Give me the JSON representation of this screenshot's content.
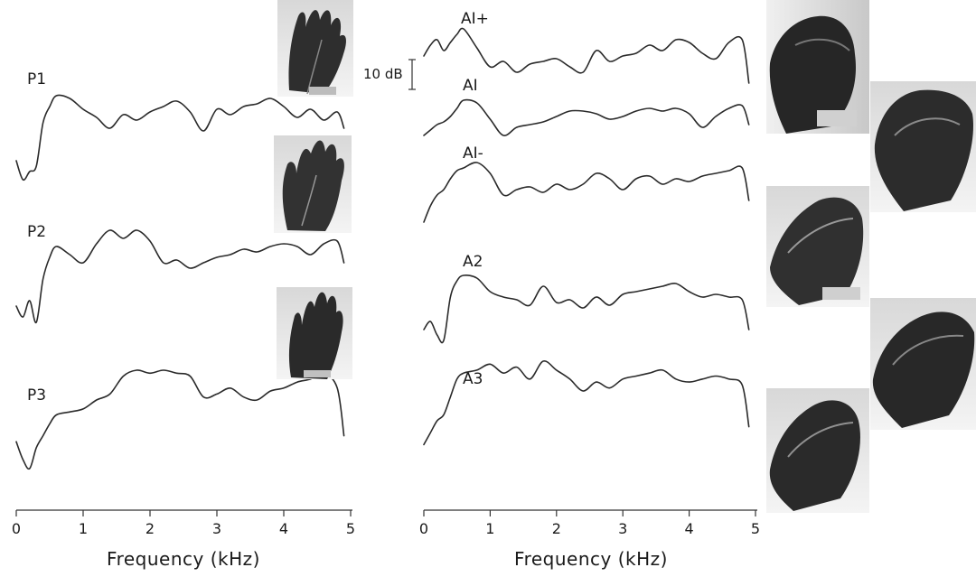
{
  "chart_data": {
    "type": "line",
    "xlabel": "Frequency (kHz)",
    "xlim": [
      0,
      5
    ],
    "x_ticks": [
      "0",
      "1",
      "2",
      "3",
      "4",
      "5"
    ],
    "scale_bar": "10 dB",
    "series": [
      {
        "name": "P1",
        "x": [
          0,
          0.1,
          0.2,
          0.3,
          0.4,
          0.5,
          0.6,
          0.8,
          1.0,
          1.2,
          1.4,
          1.6,
          1.8,
          2.0,
          2.2,
          2.4,
          2.6,
          2.8,
          3.0,
          3.2,
          3.4,
          3.6,
          3.8,
          4.0,
          4.2,
          4.4,
          4.6,
          4.8,
          4.9
        ],
        "y": [
          -26,
          -33,
          -30,
          -28,
          -12,
          -6,
          -2,
          -3,
          -7,
          -10,
          -14,
          -9,
          -11,
          -8,
          -6,
          -4,
          -8,
          -15,
          -7,
          -9,
          -6,
          -5,
          -3,
          -6,
          -10,
          -7,
          -11,
          -8,
          -14
        ]
      },
      {
        "name": "P2",
        "x": [
          0,
          0.1,
          0.2,
          0.3,
          0.4,
          0.5,
          0.6,
          0.8,
          1.0,
          1.2,
          1.4,
          1.6,
          1.8,
          2.0,
          2.2,
          2.4,
          2.6,
          2.8,
          3.0,
          3.2,
          3.4,
          3.6,
          3.8,
          4.0,
          4.2,
          4.4,
          4.6,
          4.8,
          4.9
        ],
        "y": [
          -28,
          -32,
          -26,
          -34,
          -18,
          -10,
          -6,
          -9,
          -12,
          -5,
          0,
          -3,
          0,
          -4,
          -12,
          -11,
          -14,
          -12,
          -10,
          -9,
          -7,
          -8,
          -6,
          -5,
          -6,
          -9,
          -5,
          -4,
          -12
        ]
      },
      {
        "name": "P3",
        "x": [
          0,
          0.1,
          0.2,
          0.3,
          0.4,
          0.5,
          0.6,
          0.8,
          1.0,
          1.2,
          1.4,
          1.6,
          1.8,
          2.0,
          2.2,
          2.4,
          2.6,
          2.8,
          3.0,
          3.2,
          3.4,
          3.6,
          3.8,
          4.0,
          4.2,
          4.4,
          4.6,
          4.8,
          4.9
        ],
        "y": [
          -24,
          -30,
          -33,
          -26,
          -22,
          -18,
          -15,
          -14,
          -13,
          -10,
          -8,
          -2,
          0,
          -1,
          0,
          -1,
          -2,
          -9,
          -8,
          -6,
          -9,
          -10,
          -7,
          -6,
          -4,
          -3,
          -1,
          -6,
          -22
        ]
      },
      {
        "name": "AI+",
        "x": [
          0,
          0.1,
          0.2,
          0.3,
          0.4,
          0.5,
          0.6,
          0.8,
          1.0,
          1.2,
          1.4,
          1.6,
          1.8,
          2.0,
          2.2,
          2.4,
          2.6,
          2.8,
          3.0,
          3.2,
          3.4,
          3.6,
          3.8,
          4.0,
          4.2,
          4.4,
          4.6,
          4.8,
          4.9
        ],
        "y": [
          -10,
          -6,
          -4,
          -8,
          -5,
          -2,
          0,
          -7,
          -14,
          -12,
          -16,
          -13,
          -12,
          -11,
          -14,
          -16,
          -8,
          -12,
          -10,
          -9,
          -6,
          -8,
          -4,
          -5,
          -9,
          -11,
          -5,
          -4,
          -20
        ]
      },
      {
        "name": "AI",
        "x": [
          0,
          0.1,
          0.2,
          0.3,
          0.4,
          0.5,
          0.6,
          0.8,
          1.0,
          1.2,
          1.4,
          1.6,
          1.8,
          2.0,
          2.2,
          2.4,
          2.6,
          2.8,
          3.0,
          3.2,
          3.4,
          3.6,
          3.8,
          4.0,
          4.2,
          4.4,
          4.6,
          4.8,
          4.9
        ],
        "y": [
          -14,
          -12,
          -10,
          -9,
          -7,
          -4,
          -1,
          -2,
          -8,
          -14,
          -11,
          -10,
          -9,
          -7,
          -5,
          -5,
          -6,
          -8,
          -7,
          -5,
          -4,
          -5,
          -4,
          -6,
          -11,
          -7,
          -4,
          -3,
          -10
        ]
      },
      {
        "name": "AI-",
        "x": [
          0,
          0.1,
          0.2,
          0.3,
          0.4,
          0.5,
          0.6,
          0.8,
          1.0,
          1.2,
          1.4,
          1.6,
          1.8,
          2.0,
          2.2,
          2.4,
          2.6,
          2.8,
          3.0,
          3.2,
          3.4,
          3.6,
          3.8,
          4.0,
          4.2,
          4.4,
          4.6,
          4.8,
          4.9
        ],
        "y": [
          -22,
          -16,
          -12,
          -10,
          -6,
          -3,
          -2,
          0,
          -4,
          -12,
          -10,
          -9,
          -11,
          -8,
          -10,
          -8,
          -4,
          -6,
          -10,
          -6,
          -5,
          -8,
          -6,
          -7,
          -5,
          -4,
          -3,
          -2,
          -14
        ]
      },
      {
        "name": "A2",
        "x": [
          0,
          0.1,
          0.2,
          0.3,
          0.4,
          0.5,
          0.6,
          0.8,
          1.0,
          1.2,
          1.4,
          1.6,
          1.8,
          2.0,
          2.2,
          2.4,
          2.6,
          2.8,
          3.0,
          3.2,
          3.4,
          3.6,
          3.8,
          4.0,
          4.2,
          4.4,
          4.6,
          4.8,
          4.9
        ],
        "y": [
          -20,
          -17,
          -22,
          -24,
          -8,
          -2,
          0,
          -1,
          -6,
          -8,
          -9,
          -11,
          -4,
          -10,
          -9,
          -12,
          -8,
          -11,
          -7,
          -6,
          -5,
          -4,
          -3,
          -6,
          -8,
          -7,
          -8,
          -9,
          -20
        ]
      },
      {
        "name": "A3",
        "x": [
          0,
          0.1,
          0.2,
          0.3,
          0.4,
          0.5,
          0.6,
          0.8,
          1.0,
          1.2,
          1.4,
          1.6,
          1.8,
          2.0,
          2.2,
          2.4,
          2.6,
          2.8,
          3.0,
          3.2,
          3.4,
          3.6,
          3.8,
          4.0,
          4.2,
          4.4,
          4.6,
          4.8,
          4.9
        ],
        "y": [
          -28,
          -24,
          -20,
          -18,
          -12,
          -6,
          -4,
          -3,
          -1,
          -4,
          -2,
          -6,
          0,
          -3,
          -6,
          -10,
          -7,
          -9,
          -6,
          -5,
          -4,
          -3,
          -6,
          -7,
          -6,
          -5,
          -6,
          -8,
          -22
        ]
      }
    ]
  }
}
